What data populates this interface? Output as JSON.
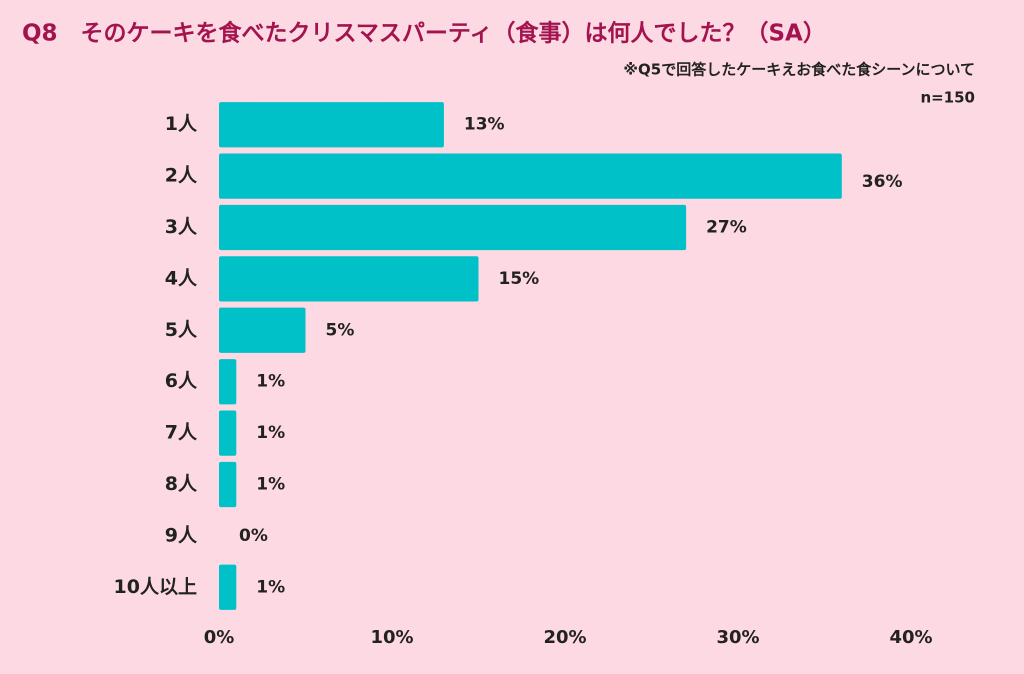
{
  "chart_data": {
    "type": "bar",
    "orientation": "horizontal",
    "title": "Q8　そのケーキを食べたクリスマスパーティ（食事）は何人でした？（SA）",
    "subtitle": "※Q5で回答したケーキえお食べた食シーンについて",
    "annotation": "n=150",
    "categories": [
      "1人",
      "2人",
      "3人",
      "4人",
      "5人",
      "6人",
      "7人",
      "8人",
      "9人",
      "10人以上"
    ],
    "values": [
      13,
      36,
      27,
      15,
      5,
      1,
      1,
      1,
      0,
      1
    ],
    "value_labels": [
      "13%",
      "36%",
      "27%",
      "15%",
      "5%",
      "1%",
      "1%",
      "1%",
      "0%",
      "1%"
    ],
    "color": "#00c0c8",
    "xlim": [
      0,
      40
    ],
    "xticks": [
      {
        "value": 0,
        "label": "0%"
      },
      {
        "value": 10,
        "label": "10%"
      },
      {
        "value": 20,
        "label": "20%"
      },
      {
        "value": 30,
        "label": "30%"
      },
      {
        "value": 40,
        "label": "40%"
      }
    ],
    "grid": false
  }
}
